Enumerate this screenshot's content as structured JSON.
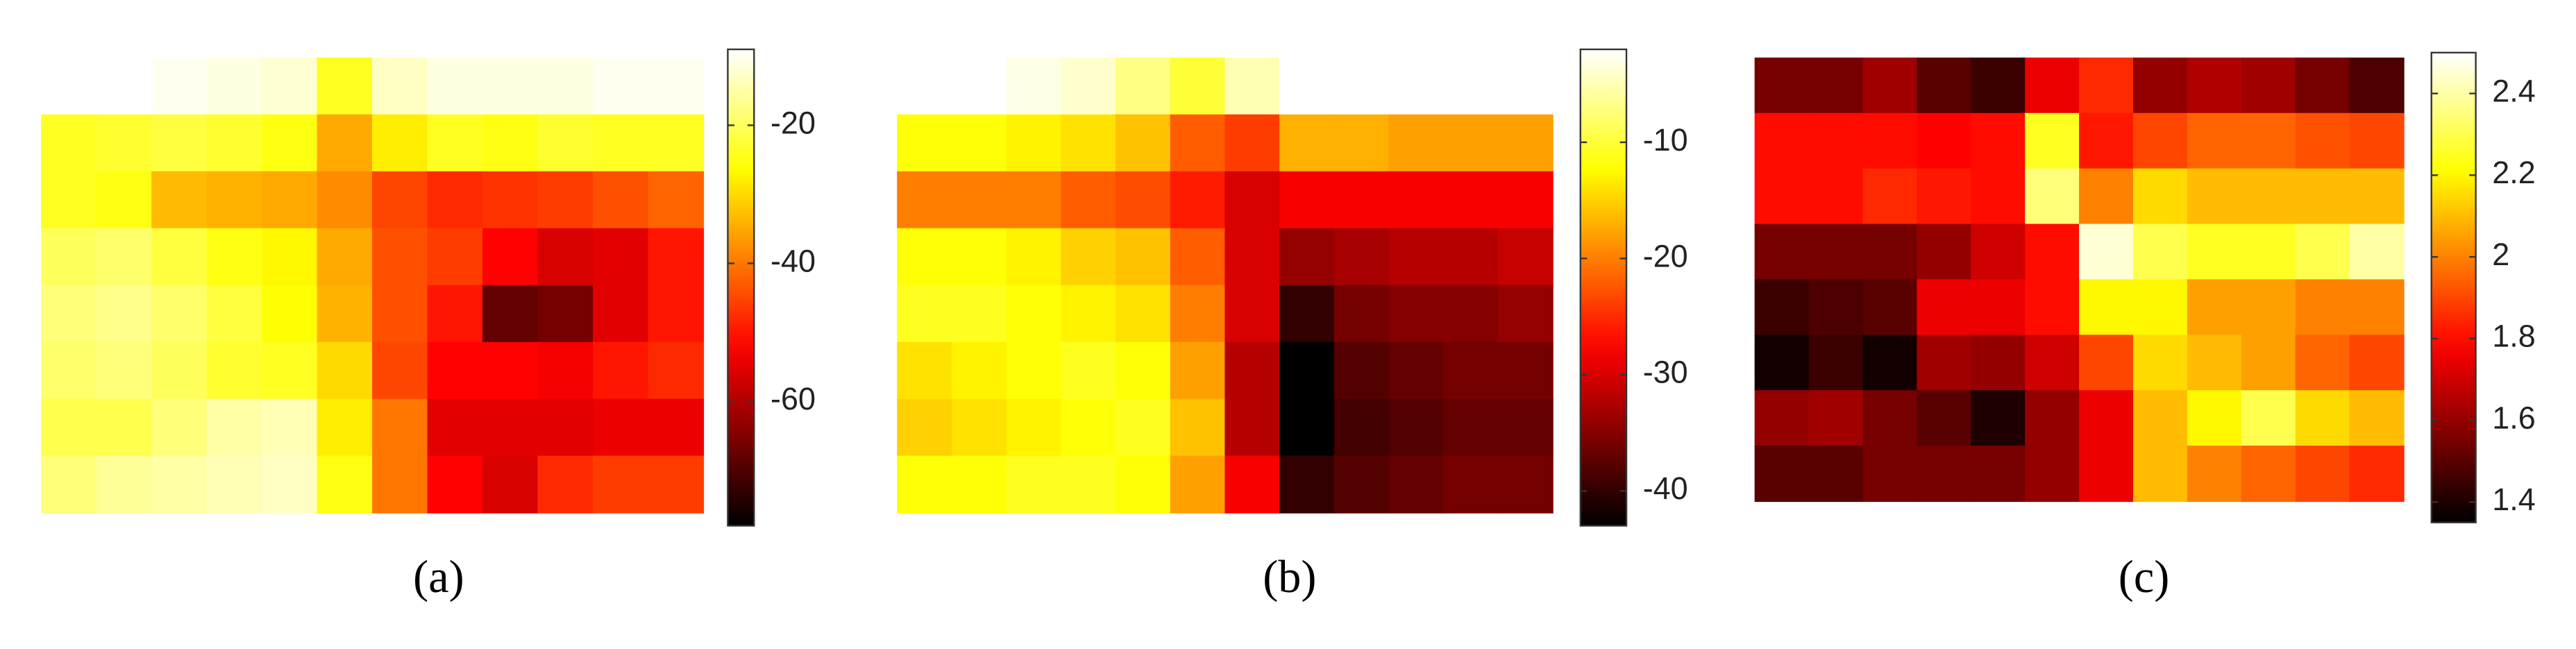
{
  "chart_data": [
    {
      "type": "heatmap",
      "caption": "(a)",
      "colormap": "hot",
      "clim": [
        -78,
        -9
      ],
      "cticks": [
        -20,
        -40,
        -60
      ],
      "z": [
        [
          -9,
          -9,
          -10,
          -11,
          -12,
          -24,
          -13,
          -11,
          -11,
          -11,
          -10,
          -10
        ],
        [
          -24,
          -23,
          -22,
          -23,
          -25,
          -35,
          -28,
          -24,
          -25,
          -23,
          -24,
          -24
        ],
        [
          -24,
          -25,
          -33,
          -34,
          -35,
          -38,
          -45,
          -48,
          -47,
          -46,
          -44,
          -42
        ],
        [
          -20,
          -19,
          -22,
          -25,
          -27,
          -35,
          -44,
          -46,
          -52,
          -56,
          -55,
          -50
        ],
        [
          -18,
          -17,
          -19,
          -22,
          -26,
          -34,
          -44,
          -50,
          -68,
          -66,
          -55,
          -50
        ],
        [
          -19,
          -18,
          -20,
          -23,
          -24,
          -30,
          -45,
          -52,
          -52,
          -53,
          -50,
          -48
        ],
        [
          -21,
          -21,
          -18,
          -15,
          -14,
          -28,
          -40,
          -55,
          -55,
          -55,
          -54,
          -54
        ],
        [
          -18,
          -16,
          -15,
          -14,
          -13,
          -25,
          -40,
          -52,
          -56,
          -48,
          -46,
          -46
        ]
      ]
    },
    {
      "type": "heatmap",
      "caption": "(b)",
      "colormap": "hot",
      "clim": [
        -43,
        -2
      ],
      "cticks": [
        -10,
        -20,
        -30,
        -40
      ],
      "z": [
        [
          -2,
          -2,
          -3,
          -4,
          -7,
          -10,
          -5,
          -2,
          -2,
          -2,
          -2,
          -2
        ],
        [
          -12,
          -12,
          -13,
          -14,
          -16,
          -22,
          -24,
          -17,
          -17,
          -18,
          -18,
          -18
        ],
        [
          -20,
          -20,
          -20,
          -22,
          -23,
          -26,
          -30,
          -28,
          -28,
          -28,
          -28,
          -28
        ],
        [
          -12,
          -12,
          -13,
          -15,
          -16,
          -22,
          -30,
          -34,
          -33,
          -32,
          -32,
          -31
        ],
        [
          -11,
          -11,
          -12,
          -13,
          -14,
          -20,
          -30,
          -40,
          -36,
          -35,
          -35,
          -34
        ],
        [
          -14,
          -13,
          -12,
          -11,
          -12,
          -18,
          -32,
          -43,
          -38,
          -37,
          -36,
          -36
        ],
        [
          -15,
          -14,
          -13,
          -12,
          -11,
          -16,
          -32,
          -43,
          -39,
          -38,
          -37,
          -37
        ],
        [
          -12,
          -12,
          -11,
          -11,
          -12,
          -18,
          -28,
          -40,
          -38,
          -37,
          -36,
          -36
        ]
      ]
    },
    {
      "type": "heatmap",
      "caption": "(c)",
      "colormap": "hot",
      "clim": [
        1.35,
        2.5
      ],
      "cticks": [
        2.4,
        2.2,
        2,
        1.8,
        1.6,
        1.4
      ],
      "z": [
        [
          1.55,
          1.55,
          1.62,
          1.5,
          1.45,
          1.75,
          1.85,
          1.6,
          1.65,
          1.62,
          1.55,
          1.48
        ],
        [
          1.8,
          1.8,
          1.8,
          1.78,
          1.8,
          2.25,
          1.82,
          1.9,
          1.95,
          1.95,
          1.92,
          1.9
        ],
        [
          1.8,
          1.8,
          1.85,
          1.82,
          1.8,
          2.35,
          2.0,
          2.15,
          2.1,
          2.1,
          2.1,
          2.1
        ],
        [
          1.55,
          1.55,
          1.55,
          1.6,
          1.7,
          1.8,
          2.45,
          2.3,
          2.25,
          2.25,
          2.3,
          2.4
        ],
        [
          1.45,
          1.48,
          1.5,
          1.75,
          1.75,
          1.8,
          2.2,
          2.2,
          2.05,
          2.05,
          2.0,
          2.0
        ],
        [
          1.38,
          1.45,
          1.38,
          1.62,
          1.6,
          1.7,
          1.9,
          2.15,
          2.1,
          2.05,
          1.95,
          1.9
        ],
        [
          1.6,
          1.62,
          1.55,
          1.5,
          1.4,
          1.6,
          1.75,
          2.1,
          2.2,
          2.3,
          2.15,
          2.1
        ],
        [
          1.5,
          1.5,
          1.55,
          1.55,
          1.55,
          1.6,
          1.75,
          2.1,
          2.0,
          1.95,
          1.9,
          1.85
        ]
      ]
    }
  ]
}
